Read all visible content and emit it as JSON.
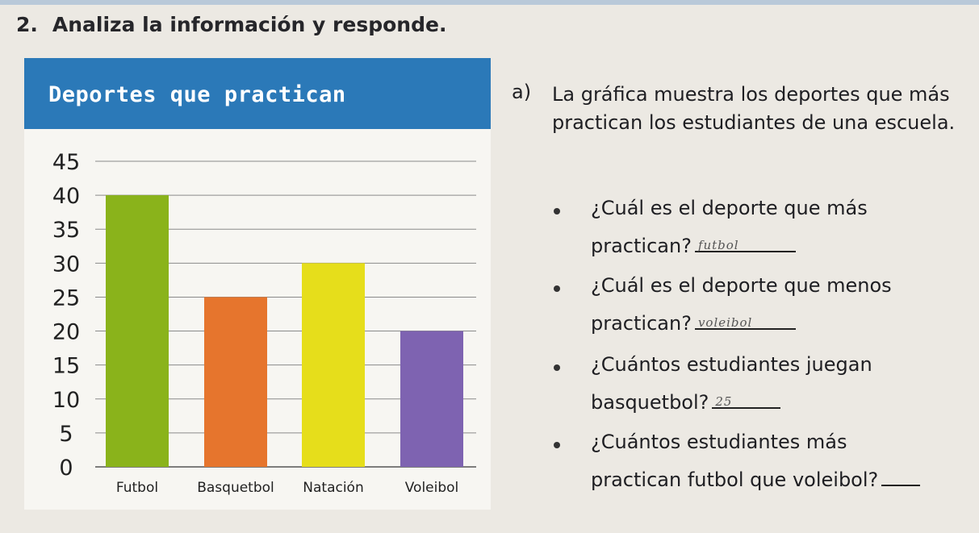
{
  "heading": {
    "number": "2.",
    "text": "Analiza la información y responde."
  },
  "chart_data": {
    "type": "bar",
    "title": "Deportes que practican",
    "categories": [
      "Futbol",
      "Basquetbol",
      "Natación",
      "Voleibol"
    ],
    "values": [
      40,
      25,
      30,
      20
    ],
    "colors": [
      "#8ab31b",
      "#e6752d",
      "#e6de1b",
      "#7e63b1"
    ],
    "ylim": [
      0,
      45
    ],
    "yticks": [
      "0",
      "5",
      "10",
      "15",
      "20",
      "25",
      "30",
      "35",
      "40",
      "45"
    ],
    "grid": true,
    "xlabel": "",
    "ylabel": ""
  },
  "questions": {
    "letter": "a)",
    "intro": "La gráfica muestra los deportes que más practican los estudiantes de una escuela.",
    "items": [
      {
        "line1": "¿Cuál es el deporte que más",
        "line2": "practican?",
        "answer": "futbol"
      },
      {
        "line1": "¿Cuál es el deporte que menos",
        "line2": "practican?",
        "answer": "voleibol"
      },
      {
        "line1": "¿Cuántos estudiantes juegan",
        "line2": "basquetbol?",
        "answer": "25"
      },
      {
        "line1": "¿Cuántos estudiantes más",
        "line2": "practican futbol que voleibol?",
        "answer": ""
      }
    ]
  }
}
